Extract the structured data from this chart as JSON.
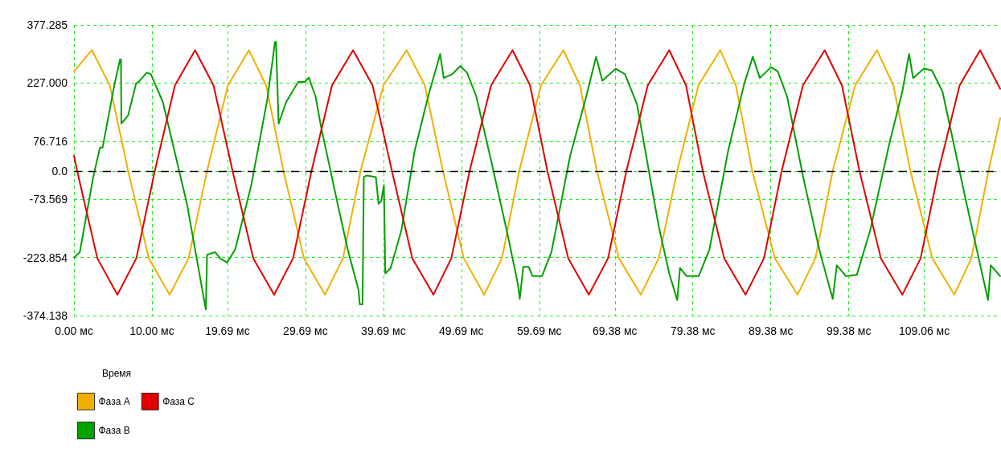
{
  "chart_data": {
    "type": "line",
    "legend_title": "Время",
    "xlim": [
      0,
      118.8
    ],
    "xticks": [
      {
        "value": 0,
        "label": "0.00 мс"
      },
      {
        "value": 10,
        "label": "10.00 мс"
      },
      {
        "value": 19.69,
        "label": "19.69 мс"
      },
      {
        "value": 29.69,
        "label": "29.69 мс"
      },
      {
        "value": 39.69,
        "label": "39.69 мс"
      },
      {
        "value": 49.69,
        "label": "49.69 мс"
      },
      {
        "value": 59.69,
        "label": "59.69 мс"
      },
      {
        "value": 69.38,
        "label": "69.38 мс"
      },
      {
        "value": 79.38,
        "label": "79.38 мс"
      },
      {
        "value": 89.38,
        "label": "89.38 мс"
      },
      {
        "value": 99.38,
        "label": "99.38 мс"
      },
      {
        "value": 109.06,
        "label": "109.06 мс"
      }
    ],
    "ylim": [
      -374.138,
      377.285
    ],
    "yticks": [
      -374.138,
      -223.854,
      -73.569,
      {
        "value": 0,
        "label": "0.0"
      },
      76.716,
      {
        "value": 227,
        "label": "227.000"
      },
      377.285
    ],
    "grid": true,
    "legend": "bottom left",
    "marker": "none",
    "line_style": "solid",
    "ref_lines": [
      {
        "axis": "y",
        "value": 0,
        "color": "#000000",
        "line_style": "dashed"
      }
    ],
    "series": [
      {
        "name": "Фаза А",
        "color": "#f0b000",
        "x": [
          0,
          2.3,
          4.6,
          6.95,
          9.6,
          12.27,
          14.7,
          17.07,
          19.75,
          22.44,
          24.65,
          26.87,
          29.5,
          32.2,
          34.5,
          36.76,
          39.7,
          42.68,
          45.0,
          47.32,
          50.0,
          52.61,
          54.9,
          57.11,
          59.9,
          62.78,
          64.9,
          67.07,
          69.9,
          72.71,
          75.0,
          77.38,
          80.1,
          82.89,
          84.9,
          87.0,
          89.9,
          92.81,
          95.1,
          97.32,
          100.2,
          102.99,
          105.1,
          107.28,
          110.1,
          112.92,
          115.1,
          117.3,
          118.8
        ],
        "values": [
          257,
          312,
          221,
          0,
          -226,
          -320,
          -226,
          0,
          221,
          312,
          221,
          0,
          -226,
          -320,
          -226,
          0,
          221,
          312,
          221,
          0,
          -226,
          -320,
          -226,
          0,
          221,
          312,
          221,
          0,
          -226,
          -320,
          -226,
          0,
          221,
          312,
          221,
          0,
          -226,
          -320,
          -226,
          0,
          221,
          312,
          221,
          0,
          -226,
          -320,
          -226,
          0,
          136
        ]
      },
      {
        "name": "Фаза В",
        "color": "#00a000",
        "x": [
          0,
          0.75,
          2.47,
          3.33,
          3.67,
          5.22,
          5.91,
          6.03,
          6.08,
          6.94,
          7.97,
          8.31,
          9.34,
          9.86,
          11.4,
          14.49,
          16.91,
          17.07,
          18.1,
          18.79,
          19.65,
          20.68,
          22.74,
          24.8,
          25.49,
          25.77,
          25.91,
          26.25,
          27.22,
          28.76,
          29.62,
          30.13,
          30.99,
          31.68,
          33.74,
          35.11,
          36.49,
          36.66,
          37.01,
          37.18,
          37.53,
          38.72,
          39.07,
          39.41,
          39.75,
          39.93,
          40.62,
          41.99,
          43.71,
          45.42,
          46.97,
          47.42,
          48.52,
          49.55,
          50.41,
          51.61,
          53.67,
          55.73,
          56.94,
          57.18,
          57.63,
          58.31,
          58.82,
          60.03,
          61.24,
          63.64,
          65.7,
          66.97,
          67.77,
          69.48,
          70.68,
          72.23,
          74.98,
          76.35,
          77.38,
          77.73,
          78.59,
          80.13,
          81.51,
          83.92,
          85.98,
          87.07,
          87.97,
          89.41,
          90.27,
          91.47,
          93.53,
          95.59,
          97.32,
          97.84,
          99.03,
          100.41,
          102.12,
          104.54,
          106.25,
          107.11,
          107.63,
          109.0,
          110.03,
          111.4,
          114.49,
          117.24,
          117.59,
          118.8
        ],
        "values": [
          -224,
          -210,
          -16,
          60,
          60,
          226,
          288,
          288,
          122,
          143,
          226,
          230,
          254,
          250,
          178,
          -85,
          -358,
          -217,
          -210,
          -227,
          -237,
          -203,
          -37,
          185,
          288,
          333,
          333,
          122,
          178,
          230,
          230,
          241,
          192,
          115,
          -78,
          -203,
          -307,
          -345,
          -345,
          -16,
          -12,
          -16,
          -85,
          -78,
          -37,
          -265,
          -251,
          -154,
          53,
          192,
          302,
          240,
          250,
          271,
          254,
          192,
          12,
          -175,
          -293,
          -331,
          -248,
          -248,
          -272,
          -272,
          -210,
          39,
          192,
          295,
          233,
          264,
          250,
          171,
          -141,
          -265,
          -334,
          -251,
          -272,
          -272,
          -203,
          53,
          226,
          295,
          240,
          268,
          257,
          192,
          -16,
          -203,
          -331,
          -244,
          -272,
          -269,
          -154,
          67,
          205,
          302,
          240,
          264,
          260,
          205,
          -85,
          -334,
          -244,
          -272
        ]
      },
      {
        "name": "Фаза С",
        "color": "#e00000",
        "x": [
          0,
          0.41,
          3.0,
          5.57,
          8.0,
          10.37,
          12.95,
          15.53,
          17.9,
          20.34,
          23.0,
          25.67,
          28.1,
          30.47,
          33.1,
          35.8,
          38.3,
          40.78,
          43.4,
          46.11,
          48.4,
          50.75,
          53.5,
          56.25,
          58.5,
          60.72,
          63.4,
          66.04,
          68.5,
          70.86,
          73.6,
          76.35,
          78.5,
          80.65,
          83.4,
          86.14,
          88.5,
          90.78,
          93.5,
          96.29,
          98.5,
          100.75,
          103.5,
          106.25,
          108.6,
          110.89,
          113.6,
          116.22,
          118.8
        ],
        "values": [
          39,
          0,
          -226,
          -320,
          -226,
          0,
          221,
          312,
          221,
          0,
          -226,
          -320,
          -226,
          0,
          221,
          312,
          221,
          0,
          -226,
          -320,
          -226,
          0,
          221,
          312,
          221,
          0,
          -226,
          -320,
          -226,
          0,
          221,
          312,
          221,
          0,
          -226,
          -320,
          -226,
          0,
          221,
          312,
          221,
          0,
          -226,
          -320,
          -226,
          0,
          221,
          312,
          212
        ]
      }
    ]
  }
}
